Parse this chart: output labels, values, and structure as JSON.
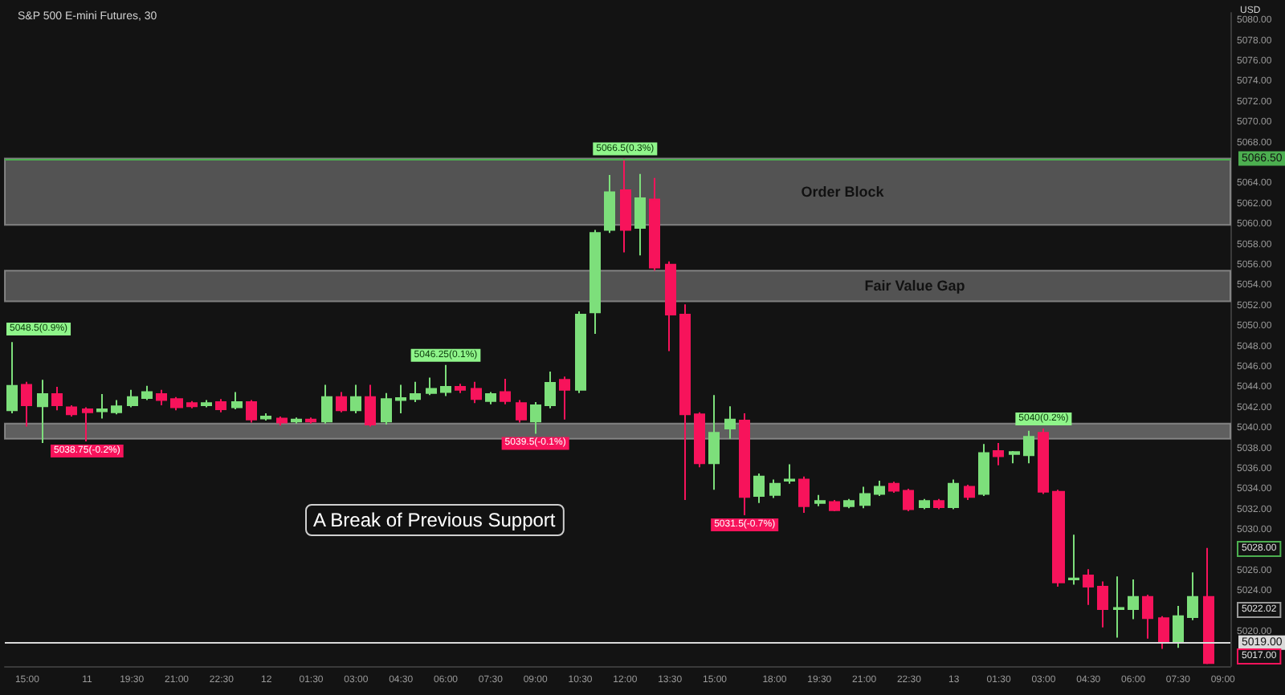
{
  "chart_data": {
    "type": "candlestick",
    "title": "S&P 500 E-mini Futures, 30",
    "ylabel": "USD",
    "categories": [
      null,
      "15:00",
      null,
      null,
      null,
      "11",
      null,
      null,
      "19:30",
      null,
      null,
      "21:00",
      null,
      null,
      "22:30",
      null,
      null,
      "12",
      null,
      null,
      "01:30",
      null,
      null,
      "03:00",
      null,
      null,
      "04:30",
      null,
      null,
      "06:00",
      null,
      null,
      "07:30",
      null,
      null,
      "09:00",
      null,
      null,
      "10:30",
      null,
      null,
      "12:00",
      null,
      null,
      "13:30",
      null,
      null,
      "15:00",
      null,
      null,
      null,
      "18:00",
      null,
      null,
      "19:30",
      null,
      null,
      "21:00",
      null,
      null,
      "22:30",
      null,
      null,
      "13",
      null,
      null,
      "01:30",
      null,
      null,
      "03:00",
      null,
      null,
      "04:30",
      null,
      null,
      "06:00",
      null,
      null,
      "07:30",
      null,
      null,
      "09:00"
    ],
    "ohlc": [
      [
        5041.8,
        5048.5,
        5041.5,
        5044.2
      ],
      [
        5044.3,
        5044.6,
        5040.2,
        5042.3
      ],
      [
        5042.2,
        5044.8,
        5038.6,
        5043.4
      ],
      [
        5043.4,
        5044.1,
        5041.8,
        5042.3
      ],
      [
        5042.1,
        5042.3,
        5041.2,
        5041.4
      ],
      [
        5041.9,
        5042.1,
        5038.75,
        5041.6
      ],
      [
        5041.7,
        5043.4,
        5041.0,
        5041.9
      ],
      [
        5041.6,
        5042.8,
        5041.4,
        5042.2
      ],
      [
        5042.3,
        5043.8,
        5042.1,
        5043.1
      ],
      [
        5043.0,
        5044.2,
        5042.8,
        5043.6
      ],
      [
        5043.4,
        5043.8,
        5042.3,
        5042.8
      ],
      [
        5042.9,
        5043.1,
        5041.8,
        5042.1
      ],
      [
        5042.5,
        5042.7,
        5042.0,
        5042.2
      ],
      [
        5042.3,
        5042.8,
        5042.1,
        5042.5
      ],
      [
        5042.6,
        5042.9,
        5041.6,
        5041.9
      ],
      [
        5042.1,
        5043.6,
        5041.9,
        5042.6
      ],
      [
        5042.6,
        5042.8,
        5040.6,
        5040.9
      ],
      [
        5041.0,
        5041.5,
        5040.8,
        5041.2
      ],
      [
        5041.0,
        5041.2,
        5040.3,
        5040.6
      ],
      [
        5040.7,
        5041.1,
        5040.5,
        5040.9
      ],
      [
        5040.9,
        5041.1,
        5040.5,
        5040.7
      ],
      [
        5040.7,
        5044.3,
        5040.5,
        5043.1
      ],
      [
        5043.1,
        5043.6,
        5041.6,
        5041.8
      ],
      [
        5041.8,
        5044.3,
        5041.5,
        5043.1
      ],
      [
        5043.1,
        5044.3,
        5040.2,
        5040.4
      ],
      [
        5040.7,
        5043.5,
        5040.4,
        5042.9
      ],
      [
        5042.8,
        5044.3,
        5041.5,
        5043.0
      ],
      [
        5042.9,
        5044.6,
        5042.6,
        5043.4
      ],
      [
        5043.5,
        5045.0,
        5043.3,
        5043.9
      ],
      [
        5043.6,
        5046.25,
        5043.2,
        5044.1
      ],
      [
        5044.1,
        5044.4,
        5043.5,
        5043.8
      ],
      [
        5043.9,
        5044.6,
        5042.5,
        5042.9
      ],
      [
        5042.7,
        5043.6,
        5042.4,
        5043.4
      ],
      [
        5043.6,
        5044.9,
        5042.4,
        5042.7
      ],
      [
        5042.5,
        5042.8,
        5040.6,
        5040.9
      ],
      [
        5040.7,
        5042.6,
        5039.5,
        5042.3
      ],
      [
        5042.3,
        5045.6,
        5042.0,
        5044.5
      ],
      [
        5044.8,
        5045.1,
        5040.9,
        5043.8
      ],
      [
        5043.8,
        5051.5,
        5043.5,
        5051.2
      ],
      [
        5051.4,
        5059.5,
        5049.3,
        5059.2
      ],
      [
        5059.5,
        5064.9,
        5059.2,
        5063.2
      ],
      [
        5063.4,
        5066.5,
        5057.3,
        5059.5
      ],
      [
        5059.7,
        5065.0,
        5057.0,
        5062.6
      ],
      [
        5062.5,
        5064.6,
        5055.5,
        5055.8
      ],
      [
        5056.1,
        5056.4,
        5047.6,
        5051.2
      ],
      [
        5051.2,
        5052.2,
        5033.0,
        5041.4
      ],
      [
        5041.4,
        5041.6,
        5036.2,
        5036.6
      ],
      [
        5036.6,
        5043.3,
        5034.0,
        5039.6
      ],
      [
        5040.0,
        5042.2,
        5039.0,
        5040.9
      ],
      [
        5040.8,
        5041.5,
        5031.5,
        5033.3
      ],
      [
        5033.4,
        5035.6,
        5032.7,
        5035.3
      ],
      [
        5033.5,
        5035.0,
        5033.2,
        5034.6
      ],
      [
        5034.9,
        5036.5,
        5034.6,
        5035.0
      ],
      [
        5035.0,
        5035.3,
        5031.75,
        5032.4
      ],
      [
        5032.7,
        5033.5,
        5032.4,
        5032.9
      ],
      [
        5032.8,
        5033.0,
        5031.9,
        5032.0
      ],
      [
        5032.4,
        5033.1,
        5032.2,
        5032.9
      ],
      [
        5032.5,
        5034.3,
        5032.2,
        5033.6
      ],
      [
        5033.6,
        5034.9,
        5033.4,
        5034.3
      ],
      [
        5034.6,
        5034.8,
        5033.7,
        5033.9
      ],
      [
        5033.9,
        5034.1,
        5031.9,
        5032.1
      ],
      [
        5032.3,
        5033.1,
        5032.1,
        5032.9
      ],
      [
        5032.9,
        5033.1,
        5032.1,
        5032.3
      ],
      [
        5032.3,
        5035.0,
        5032.1,
        5034.6
      ],
      [
        5034.3,
        5034.5,
        5033.0,
        5033.3
      ],
      [
        5033.6,
        5038.5,
        5033.4,
        5037.6
      ],
      [
        5037.8,
        5038.6,
        5036.4,
        5037.3
      ],
      [
        5037.5,
        5037.8,
        5036.6,
        5037.7
      ],
      [
        5037.4,
        5039.8,
        5036.6,
        5039.2
      ],
      [
        5039.6,
        5040,
        5033.6,
        5033.8
      ],
      [
        5033.8,
        5034.0,
        5024.5,
        5024.9
      ],
      [
        5025.2,
        5029.6,
        5024.7,
        5025.3
      ],
      [
        5025.6,
        5026.2,
        5022.7,
        5024.5
      ],
      [
        5024.5,
        5025.0,
        5020.5,
        5022.3
      ],
      [
        5022.3,
        5025.5,
        5019.5,
        5022.4
      ],
      [
        5022.3,
        5025.2,
        5021.3,
        5023.5
      ],
      [
        5023.5,
        5023.7,
        5019.4,
        5021.4
      ],
      [
        5021.4,
        5021.6,
        5018.4,
        5019.0
      ],
      [
        5019.0,
        5022.6,
        5018.5,
        5021.6
      ],
      [
        5021.5,
        5025.9,
        5021.2,
        5023.5
      ],
      [
        5023.5,
        5028.3,
        5016.9,
        5017.0
      ],
      null
    ],
    "colors": [
      "#7ddf7b",
      "#f7135b",
      "#7ddf7b",
      "#f7135b",
      "#f7135b",
      "#f7135b",
      "#7ddf7b",
      "#7ddf7b",
      "#7ddf7b",
      "#7ddf7b",
      "#f7135b",
      "#f7135b",
      "#f7135b",
      "#7ddf7b",
      "#f7135b",
      "#7ddf7b",
      "#f7135b",
      "#7ddf7b",
      "#f7135b",
      "#7ddf7b",
      "#f7135b",
      "#7ddf7b",
      "#f7135b",
      "#7ddf7b",
      "#f7135b",
      "#7ddf7b",
      "#7ddf7b",
      "#7ddf7b",
      "#7ddf7b",
      "#7ddf7b",
      "#f7135b",
      "#f7135b",
      "#7ddf7b",
      "#f7135b",
      "#f7135b",
      "#7ddf7b",
      "#7ddf7b",
      "#f7135b",
      "#7ddf7b",
      "#7ddf7b",
      "#7ddf7b",
      "#f7135b",
      "#7ddf7b",
      "#f7135b",
      "#f7135b",
      "#f7135b",
      "#f7135b",
      "#7ddf7b",
      "#7ddf7b",
      "#f7135b",
      "#7ddf7b",
      "#7ddf7b",
      "#7ddf7b",
      "#f7135b",
      "#7ddf7b",
      "#f7135b",
      "#7ddf7b",
      "#7ddf7b",
      "#7ddf7b",
      "#f7135b",
      "#f7135b",
      "#7ddf7b",
      "#f7135b",
      "#7ddf7b",
      "#f7135b",
      "#7ddf7b",
      "#f7135b",
      "#7ddf7b",
      "#7ddf7b",
      "#f7135b",
      "#f7135b",
      "#7ddf7b",
      "#f7135b",
      "#f7135b",
      "#7ddf7b",
      "#7ddf7b",
      "#f7135b",
      "#f7135b",
      "#7ddf7b",
      "#7ddf7b",
      "#f7135b",
      null
    ],
    "ylim": [
      5016.7,
      5080.8
    ],
    "yticks": [
      {
        "value": 5020,
        "label": "5020.00"
      },
      {
        "value": 5024,
        "label": "5024.00"
      },
      {
        "value": 5026,
        "label": "5026.00"
      },
      {
        "value": 5030,
        "label": "5030.00"
      },
      {
        "value": 5032,
        "label": "5032.00"
      },
      {
        "value": 5034,
        "label": "5034.00"
      },
      {
        "value": 5036,
        "label": "5036.00"
      },
      {
        "value": 5038,
        "label": "5038.00"
      },
      {
        "value": 5040,
        "label": "5040.00"
      },
      {
        "value": 5042,
        "label": "5042.00"
      },
      {
        "value": 5044,
        "label": "5044.00"
      },
      {
        "value": 5046,
        "label": "5046.00"
      },
      {
        "value": 5048,
        "label": "5048.00"
      },
      {
        "value": 5050,
        "label": "5050.00"
      },
      {
        "value": 5052,
        "label": "5052.00"
      },
      {
        "value": 5054,
        "label": "5054.00"
      },
      {
        "value": 5056,
        "label": "5056.00"
      },
      {
        "value": 5058,
        "label": "5058.00"
      },
      {
        "value": 5060,
        "label": "5060.00"
      },
      {
        "value": 5062,
        "label": "5062.00"
      },
      {
        "value": 5064,
        "label": "5064.00"
      },
      {
        "value": 5068,
        "label": "5068.00"
      },
      {
        "value": 5070,
        "label": "5070.00"
      },
      {
        "value": 5072,
        "label": "5072.00"
      },
      {
        "value": 5074,
        "label": "5074.00"
      },
      {
        "value": 5076,
        "label": "5076.00"
      },
      {
        "value": 5078,
        "label": "5078.00"
      },
      {
        "value": 5080,
        "label": "5080.00"
      }
    ],
    "bands": [
      {
        "axis": "y",
        "from": 5060.0,
        "to": 5066.5,
        "label": "Order Block",
        "color": "#6a6a6a"
      },
      {
        "axis": "y",
        "from": 5052.5,
        "to": 5055.5,
        "label": "Fair Value Gap",
        "color": "#6a6a6a"
      },
      {
        "axis": "y",
        "from": 5039.0,
        "to": 5040.5,
        "color": "#7a7a7a"
      }
    ],
    "ref_lines": [
      {
        "axis": "y",
        "value": 5066.5,
        "label": "5066.50",
        "color": "#4caf50"
      },
      {
        "axis": "y",
        "value": 5019,
        "label": "5019.00",
        "color": "#d9d9d9"
      }
    ],
    "annotations": [
      "5048.5(0.9%)",
      {
        "text": "5038.75(-0.2%)",
        "y": 5038.75
      },
      {
        "text": "5046.25(0.1%)",
        "y": 5046.25
      },
      {
        "text": "5039.5(-0.1%)",
        "y": 5039.5
      },
      {
        "text": "5066.5(0.3%)",
        "y": 5066.5
      },
      {
        "text": "5031.5(-0.7%)",
        "y": 5031.5
      },
      {
        "text": "5040(0.2%)",
        "y": 5040
      },
      "5028.00",
      "5022.02",
      "5017.00",
      "A Break of Previous Support"
    ],
    "grid": false
  }
}
